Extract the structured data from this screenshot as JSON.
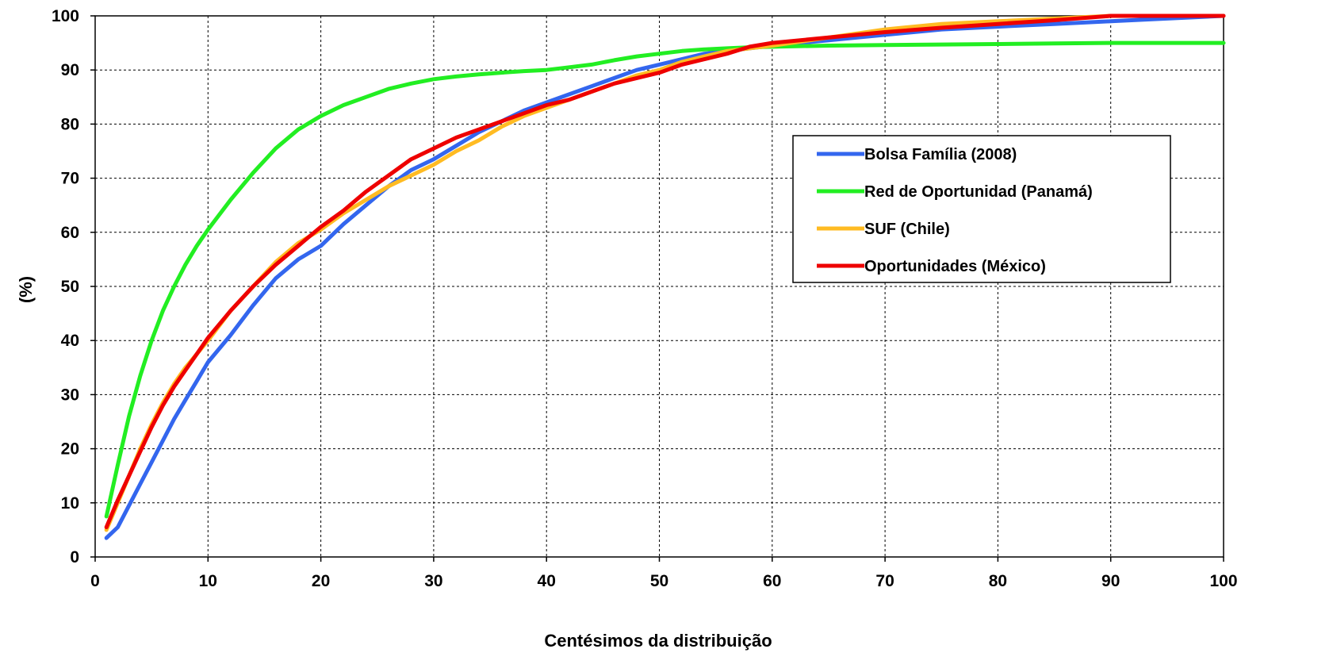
{
  "chart_data": {
    "type": "line",
    "title": "",
    "xlabel": "Centésimos da distribuição",
    "ylabel": "(%)",
    "xlim": [
      0,
      100
    ],
    "ylim": [
      0,
      100
    ],
    "x_ticks": [
      0,
      10,
      20,
      30,
      40,
      50,
      60,
      70,
      80,
      90,
      100
    ],
    "y_ticks": [
      0,
      10,
      20,
      30,
      40,
      50,
      60,
      70,
      80,
      90,
      100
    ],
    "grid": true,
    "legend_position": "right",
    "x": [
      1,
      2,
      3,
      4,
      5,
      6,
      7,
      8,
      9,
      10,
      12,
      14,
      16,
      18,
      20,
      22,
      24,
      26,
      28,
      30,
      32,
      34,
      36,
      38,
      40,
      42,
      44,
      46,
      48,
      50,
      52,
      54,
      56,
      58,
      60,
      65,
      70,
      75,
      80,
      85,
      90,
      95,
      100
    ],
    "series": [
      {
        "name": "Bolsa Família (2008)",
        "color": "#3366ee",
        "values": [
          3.5,
          5.5,
          9.5,
          13.5,
          17.5,
          21.5,
          25.5,
          29,
          32.5,
          36,
          41,
          46.5,
          51.5,
          55,
          57.5,
          61.5,
          65,
          68.5,
          71.5,
          73.5,
          76,
          78.5,
          80.5,
          82.5,
          84,
          85.5,
          87,
          88.5,
          90,
          91,
          92,
          93,
          93.5,
          94,
          94.5,
          95.5,
          96.5,
          97.5,
          98,
          98.5,
          99,
          99.5,
          100
        ]
      },
      {
        "name": "Red de Oportunidad (Panamá)",
        "color": "#22ee22",
        "values": [
          7.5,
          17,
          26,
          33.5,
          40,
          45.5,
          50,
          54,
          57.5,
          60.5,
          66,
          71,
          75.5,
          79,
          81.5,
          83.5,
          85,
          86.5,
          87.5,
          88.3,
          88.8,
          89.2,
          89.5,
          89.8,
          90,
          90.5,
          91,
          91.8,
          92.5,
          93,
          93.5,
          93.8,
          94,
          94.2,
          94.3,
          94.5,
          94.6,
          94.7,
          94.8,
          94.9,
          95,
          95,
          95
        ]
      },
      {
        "name": "SUF (Chile)",
        "color": "#ffbb22",
        "values": [
          5,
          10,
          15,
          20,
          24.5,
          28.5,
          32,
          35,
          37.5,
          40,
          45.5,
          50,
          54.5,
          58,
          60.5,
          63.5,
          66,
          68.5,
          70.5,
          72.5,
          75,
          77,
          79.5,
          81.5,
          83,
          84.5,
          86,
          87.5,
          89,
          90,
          91.5,
          92.5,
          93.5,
          94,
          94.5,
          96,
          97.5,
          98.5,
          99,
          99.5,
          100,
          100,
          100
        ]
      },
      {
        "name": "Oportunidades (México)",
        "color": "#ee0000",
        "values": [
          5.5,
          10.5,
          15,
          19.5,
          24,
          28,
          31.5,
          34.5,
          37.5,
          40.5,
          45.5,
          50,
          54,
          57.5,
          61,
          64,
          67.5,
          70.5,
          73.5,
          75.5,
          77.5,
          79,
          80.5,
          82,
          83.5,
          84.5,
          86,
          87.5,
          88.5,
          89.5,
          91,
          92,
          93,
          94.3,
          95,
          96,
          97,
          97.8,
          98.5,
          99.2,
          100,
          100,
          100
        ]
      }
    ]
  }
}
